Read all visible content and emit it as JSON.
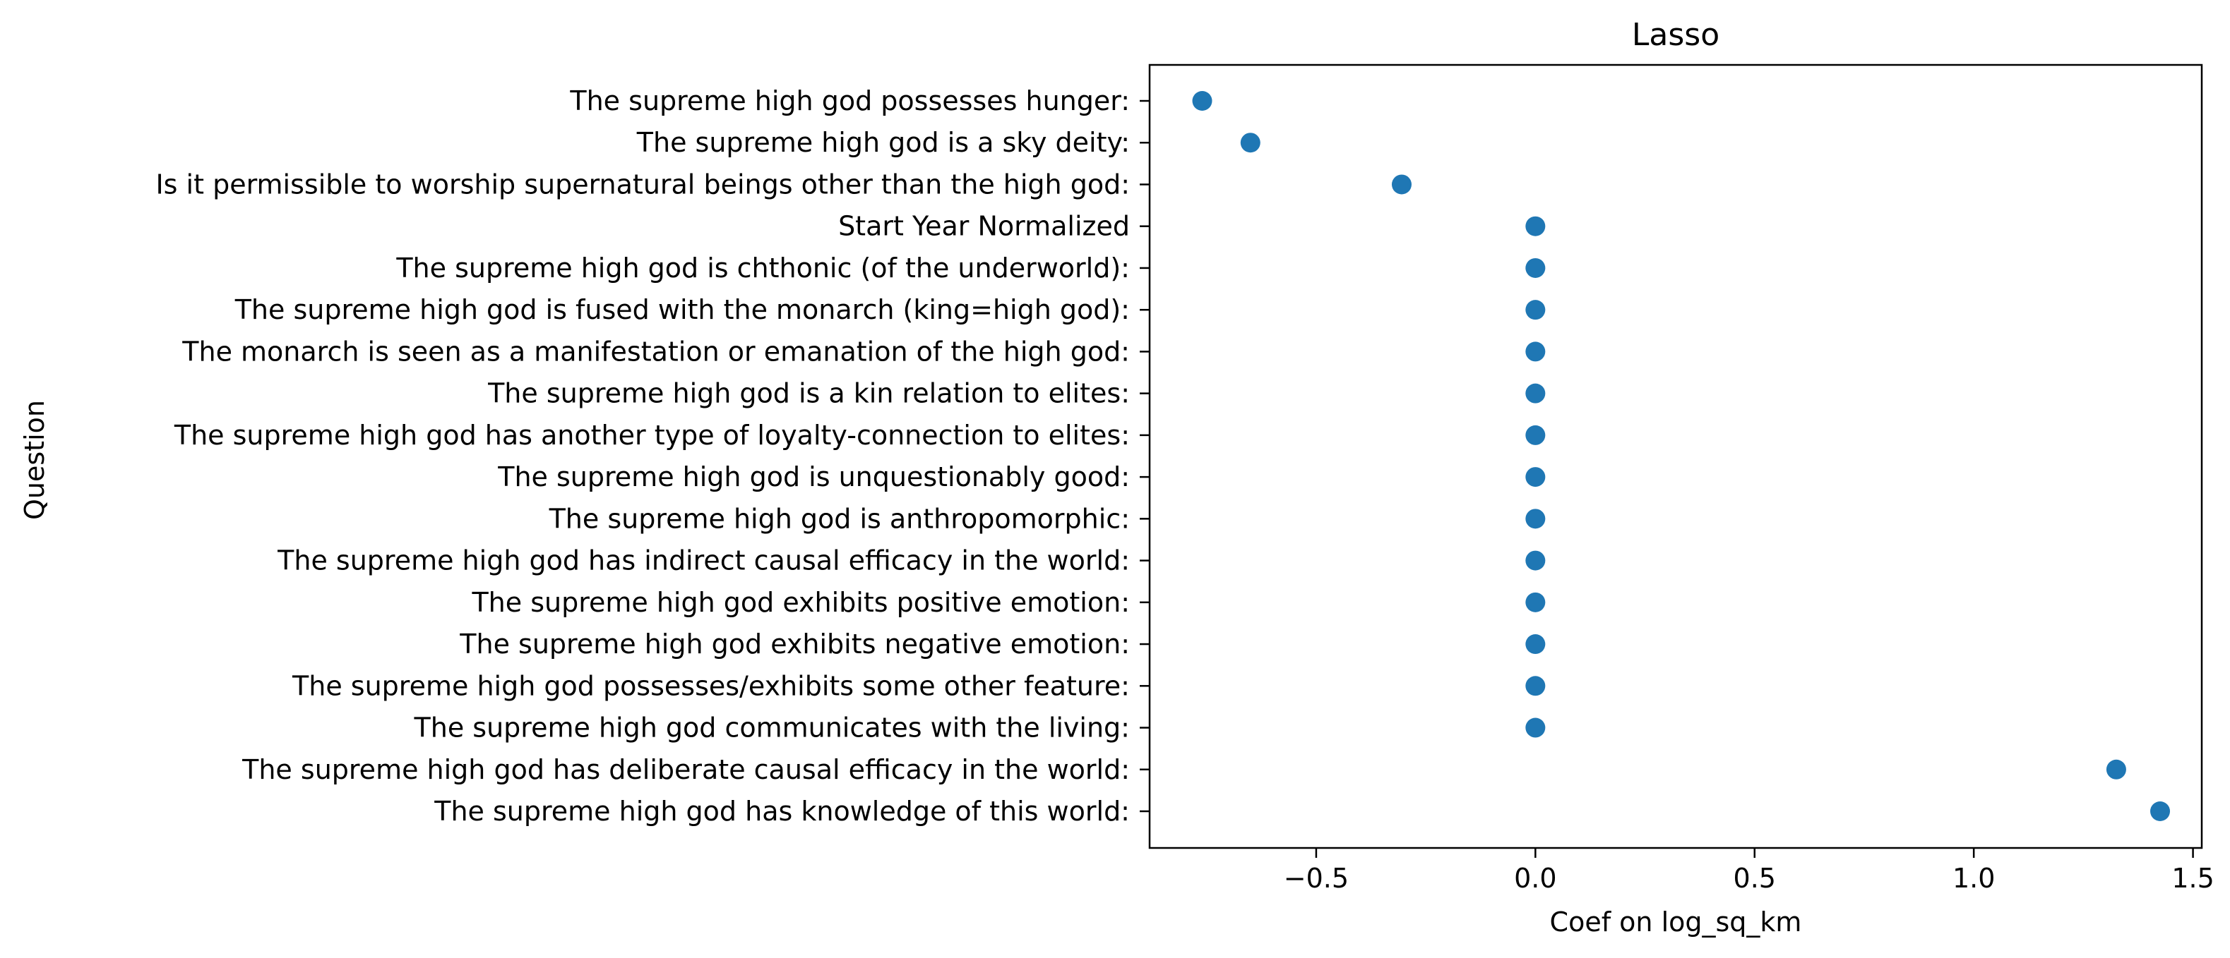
{
  "chart_data": {
    "type": "scatter",
    "title": "Lasso",
    "xlabel": "Coef on log_sq_km",
    "ylabel": "Question",
    "xlim": [
      -0.88,
      1.52
    ],
    "xticks": [
      -0.5,
      0.0,
      0.5,
      1.0,
      1.5
    ],
    "xtick_labels": [
      "−0.5",
      "0.0",
      "0.5",
      "1.0",
      "1.5"
    ],
    "grid": false,
    "marker_color": "#1f77b4",
    "categories": [
      "The supreme high god possesses hunger:",
      "The supreme high god is a sky deity:",
      "Is it permissible to worship supernatural beings other than the high god:",
      "Start Year Normalized",
      "The supreme high god is chthonic (of the underworld):",
      "The supreme high god is fused with the monarch (king=high god):",
      "The monarch is seen as a manifestation or emanation of the high god:",
      "The supreme high god is a kin relation to elites:",
      "The supreme high god has another type of loyalty-connection to elites:",
      "The supreme high god is unquestionably good:",
      "The supreme high god is anthropomorphic:",
      "The supreme high god has indirect causal efficacy in the  world:",
      "The supreme high god exhibits positive emotion:",
      "The supreme high god exhibits negative emotion:",
      "The supreme high god possesses/exhibits some other feature:",
      "The supreme high god communicates with the living:",
      "The supreme high god has deliberate causal efficacy in the world:",
      "The supreme high god has knowledge of this world:"
    ],
    "values": [
      -0.76,
      -0.65,
      -0.305,
      0.0,
      0.0,
      0.0,
      0.0,
      0.0,
      0.0,
      0.0,
      0.0,
      0.0,
      0.0,
      0.0,
      0.0,
      0.0,
      1.325,
      1.425
    ]
  }
}
